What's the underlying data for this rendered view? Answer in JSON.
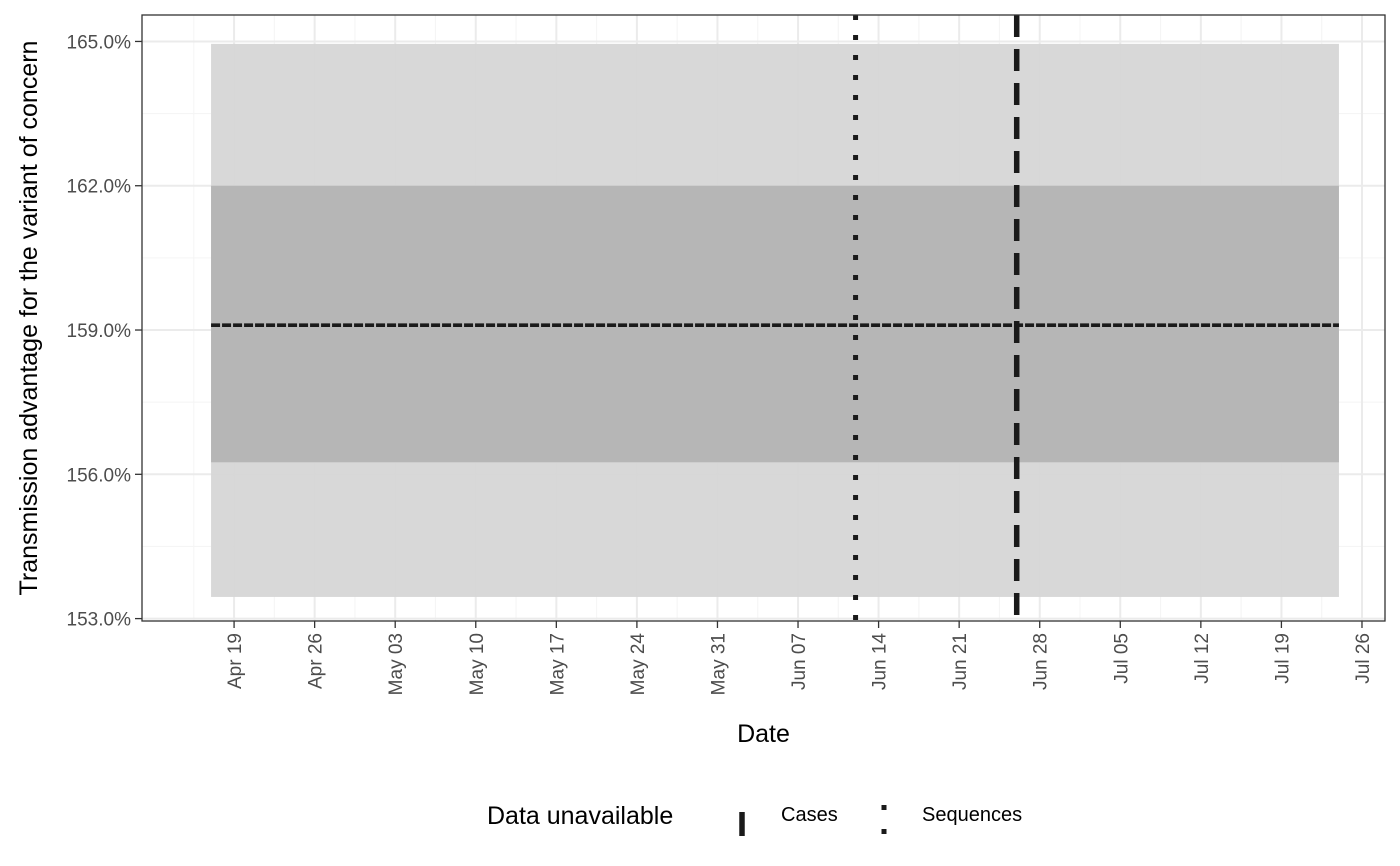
{
  "chart_data": {
    "type": "line",
    "title": "",
    "xlabel": "Date",
    "ylabel": "Transmission advantage for the variant of concern",
    "x_ticks": [
      "Apr 19",
      "Apr 26",
      "May 03",
      "May 10",
      "May 17",
      "May 24",
      "May 31",
      "Jun 07",
      "Jun 14",
      "Jun 21",
      "Jun 28",
      "Jul 05",
      "Jul 12",
      "Jul 19",
      "Jul 26"
    ],
    "y_ticks": [
      "153.0%",
      "156.0%",
      "159.0%",
      "162.0%",
      "165.0%"
    ],
    "xlim": [
      "2021-04-11",
      "2021-07-28"
    ],
    "ylim": [
      152.95,
      165.55
    ],
    "grid": true,
    "series": [
      {
        "x": [
          "2021-04-17",
          "2021-07-24"
        ],
        "y": [
          159.1,
          159.1
        ],
        "ribbon_outer": [
          153.45,
          164.95
        ],
        "ribbon_inner": [
          156.25,
          162.0
        ],
        "color": "#1a1a1a"
      }
    ],
    "vlines": [
      {
        "x": "2021-06-12",
        "linetype": "dotted"
      },
      {
        "x": "2021-06-26",
        "linetype": "dashed"
      }
    ],
    "legend": {
      "title": "Data unavailable",
      "position": "bottom",
      "items": [
        {
          "label": "Cases",
          "linetype": "dashed"
        },
        {
          "label": "Sequences",
          "linetype": "dotted"
        }
      ]
    },
    "colors": {
      "line": "#1a1a1a",
      "ribbon_outer": "#d6d6d6",
      "ribbon_inner": "#b4b4b4",
      "grid_major": "#ebebeb",
      "grid_minor": "#f5f5f5",
      "panel_border": "#333333"
    }
  }
}
